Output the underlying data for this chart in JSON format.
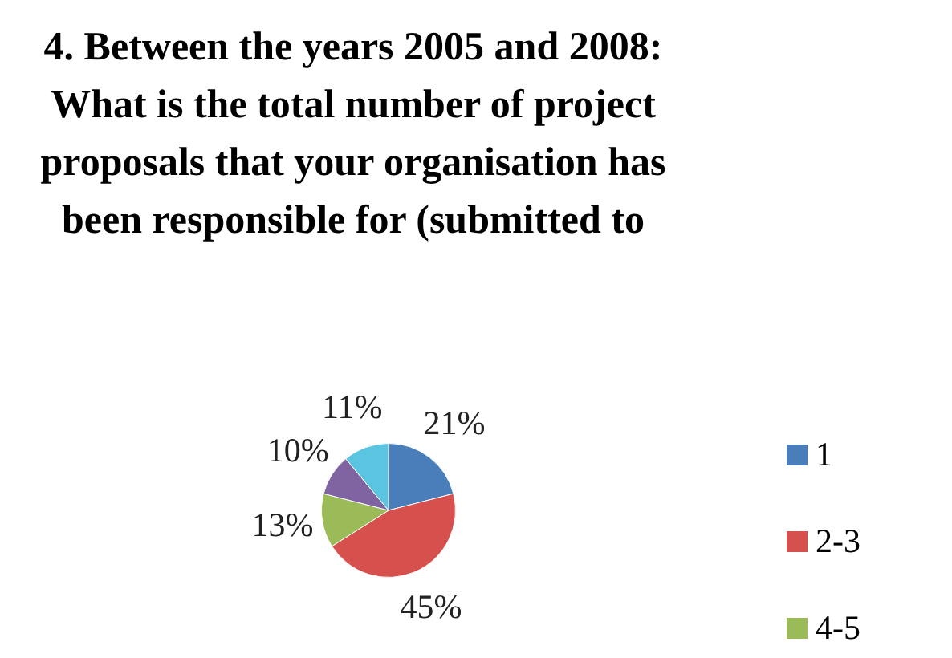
{
  "chart_data": {
    "type": "pie",
    "title": "4. Between the years 2005 and 2008: What is the total number of project proposals that your organisation has been responsible for (submitted to",
    "categories": [
      "1",
      "2-3",
      "4-5",
      null,
      null
    ],
    "values": [
      21,
      45,
      13,
      10,
      11
    ],
    "value_labels": [
      "21%",
      "45%",
      "13%",
      "10%",
      "11%"
    ],
    "colors": [
      "#4a7ebb",
      "#d6504d",
      "#9bbb59",
      "#8064a2",
      "#5bc4e0"
    ],
    "legend": "right"
  }
}
